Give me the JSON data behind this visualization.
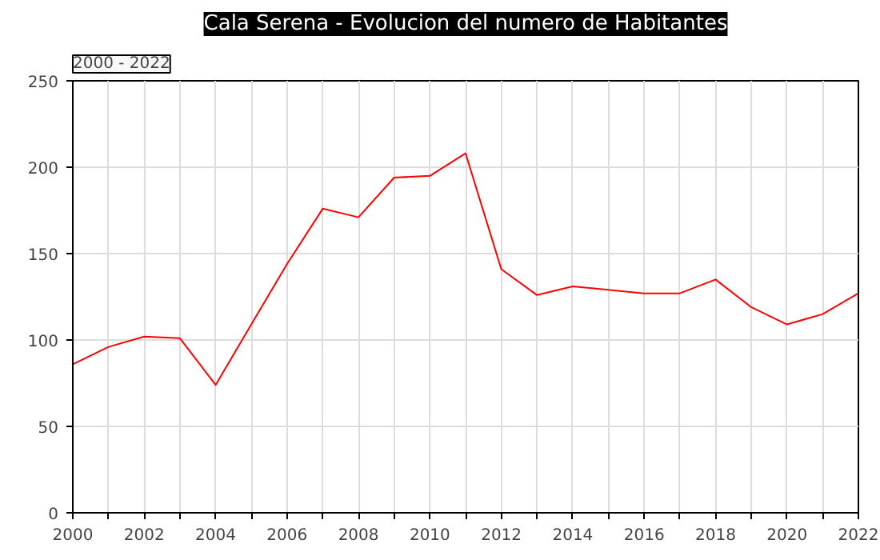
{
  "chart_data": {
    "type": "line",
    "title": "Cala Serena - Evolucion del numero de Habitantes",
    "annotations": [
      "2000 - 2022"
    ],
    "x": [
      2000,
      2001,
      2002,
      2003,
      2004,
      2005,
      2006,
      2007,
      2008,
      2009,
      2010,
      2011,
      2012,
      2013,
      2014,
      2015,
      2016,
      2017,
      2018,
      2019,
      2020,
      2021,
      2022
    ],
    "series": [
      {
        "color": "#ff0000",
        "values": [
          86,
          96,
          102,
          101,
          74,
          109,
          144,
          176,
          171,
          194,
          195,
          208,
          141,
          126,
          131,
          129,
          127,
          127,
          135,
          119,
          109,
          115,
          127
        ]
      }
    ],
    "xlim": [
      2000,
      2022
    ],
    "ylim": [
      0,
      250
    ],
    "xticks": [
      2000,
      {
        "value": 2001,
        "label": null
      },
      2002,
      {
        "value": 2003,
        "label": null
      },
      2004,
      {
        "value": 2005,
        "label": null
      },
      2006,
      {
        "value": 2007,
        "label": null
      },
      2008,
      {
        "value": 2009,
        "label": null
      },
      2010,
      {
        "value": 2011,
        "label": null
      },
      2012,
      {
        "value": 2013,
        "label": null
      },
      2014,
      {
        "value": 2015,
        "label": null
      },
      2016,
      {
        "value": 2017,
        "label": null
      },
      2018,
      {
        "value": 2019,
        "label": null
      },
      2020,
      {
        "value": 2021,
        "label": null
      },
      2022
    ],
    "yticks": [
      0,
      50,
      100,
      150,
      200,
      250
    ],
    "grid": true,
    "marker": "none",
    "line_style": "solid"
  }
}
